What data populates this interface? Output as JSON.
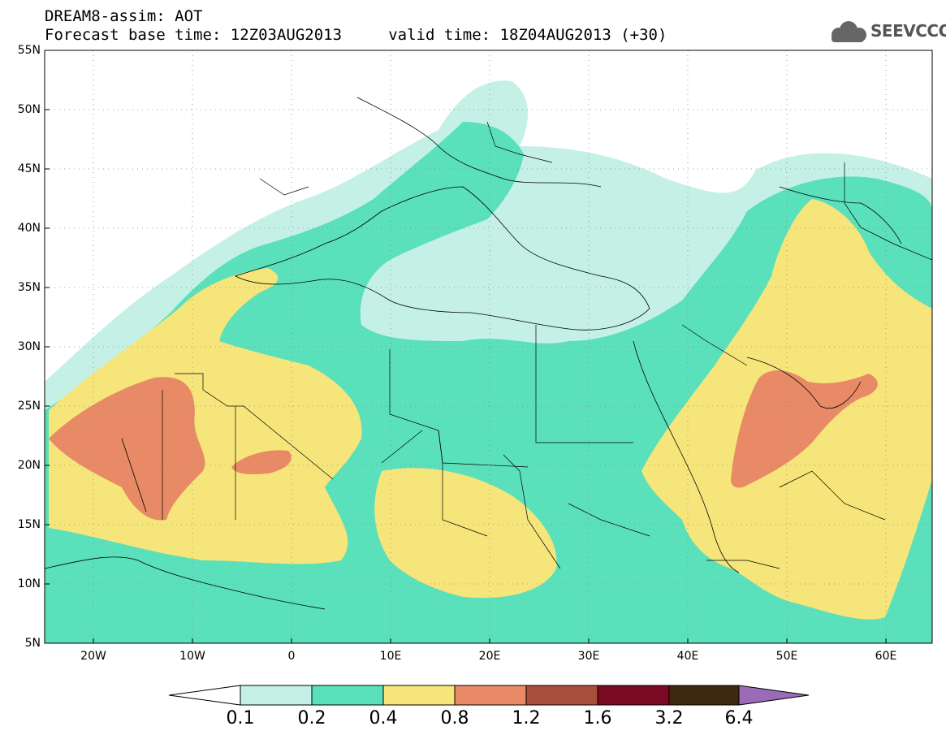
{
  "header": {
    "title_line1": "DREAM8-assim: AOT",
    "title_line2": "Forecast base time: 12Z03AUG2013     valid time: 18Z04AUG2013 (+30)",
    "logo_text": "SEEVCCC"
  },
  "axes": {
    "lat_labels": [
      "55N",
      "50N",
      "45N",
      "40N",
      "35N",
      "30N",
      "25N",
      "20N",
      "15N",
      "10N",
      "5N"
    ],
    "lon_labels": [
      "20W",
      "10W",
      "0",
      "10E",
      "20E",
      "30E",
      "40E",
      "50E",
      "60E"
    ]
  },
  "colorbar": {
    "labels": [
      "0.1",
      "0.2",
      "0.4",
      "0.8",
      "1.2",
      "1.6",
      "3.2",
      "6.4"
    ],
    "colors": [
      "#ffffff",
      "#c4f0e6",
      "#5ae0bb",
      "#f6e57a",
      "#e88a66",
      "#a84e3c",
      "#7a0a22",
      "#3e2810",
      "#9b6ab8"
    ]
  },
  "map": {
    "colors": {
      "c1": "#c4f0e6",
      "c2": "#5ae0bb",
      "c3": "#f6e57a",
      "c4": "#e88a66"
    }
  }
}
